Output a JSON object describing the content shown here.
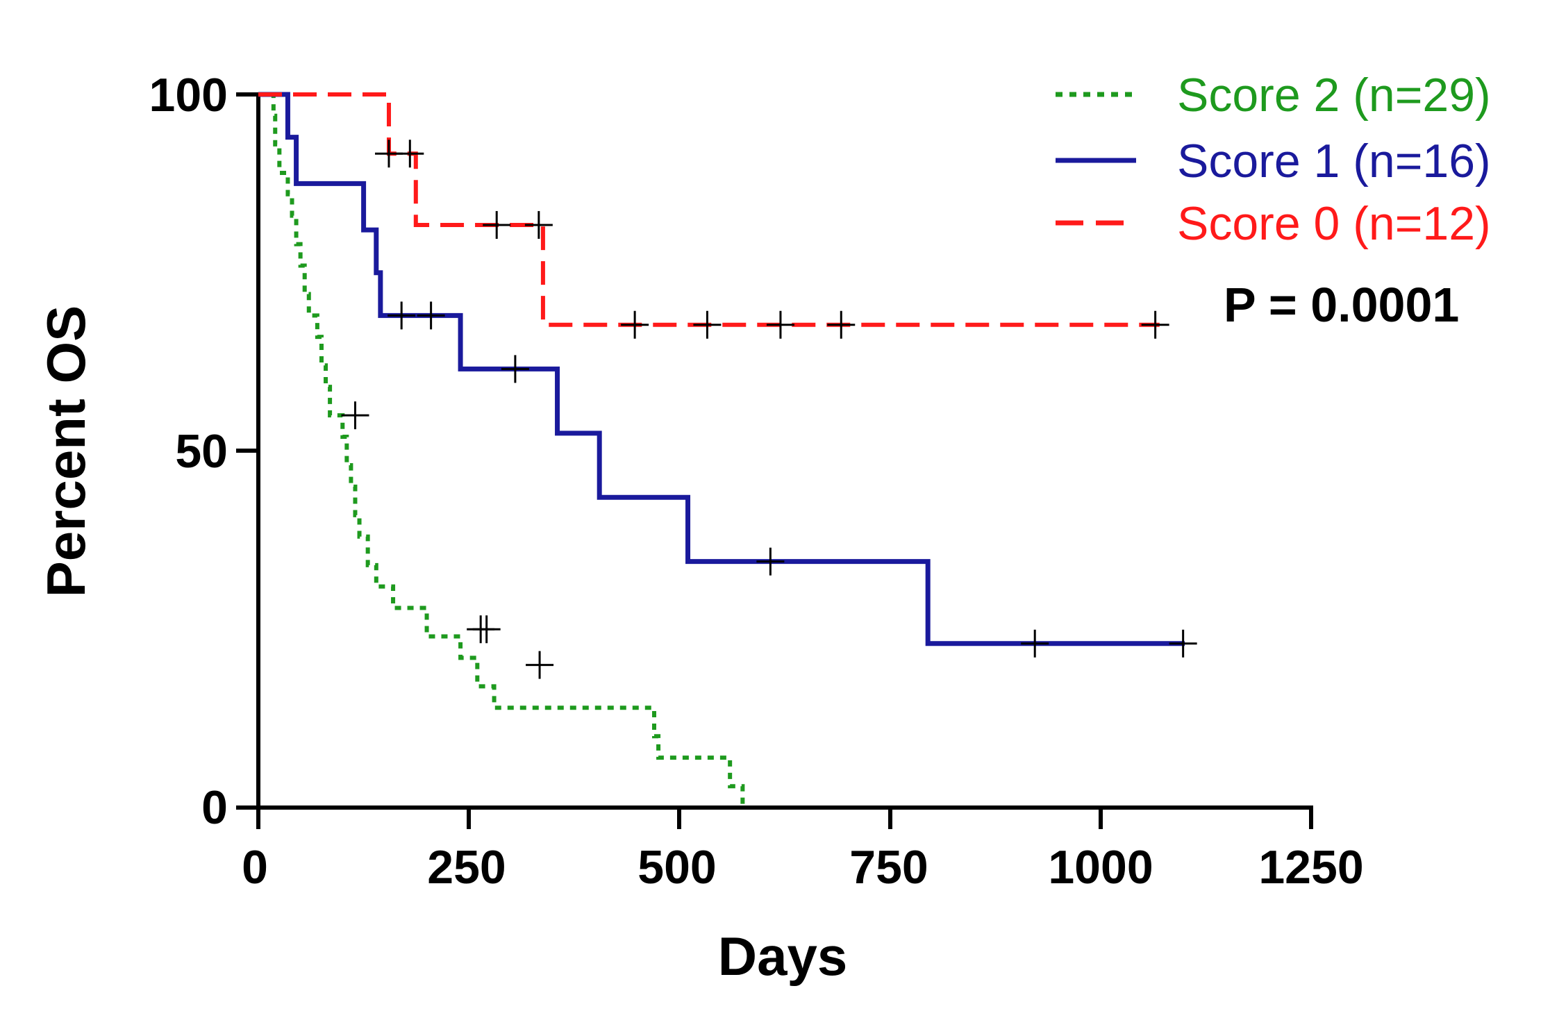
{
  "chart_data": {
    "type": "line",
    "subtype": "kaplan-meier",
    "title": "",
    "xlabel": "Days",
    "ylabel": "Percent OS",
    "xlim": [
      0,
      1250
    ],
    "ylim": [
      0,
      100
    ],
    "xticks": [
      "0",
      "250",
      "500",
      "750",
      "1000",
      "1250"
    ],
    "yticks": [
      "0",
      "50",
      "100"
    ],
    "legend_position": "top-right",
    "annotation": "P = 0.0001",
    "series": [
      {
        "name": "Score 2 (n=29)",
        "color": "#1e9a1e",
        "style": "dotted",
        "steps": [
          [
            0,
            100
          ],
          [
            15,
            100
          ],
          [
            18,
            97
          ],
          [
            20,
            93
          ],
          [
            25,
            89
          ],
          [
            35,
            86
          ],
          [
            40,
            83
          ],
          [
            45,
            79
          ],
          [
            50,
            76
          ],
          [
            55,
            72
          ],
          [
            60,
            69
          ],
          [
            70,
            66
          ],
          [
            75,
            62
          ],
          [
            80,
            59
          ],
          [
            85,
            55
          ],
          [
            100,
            52
          ],
          [
            105,
            48
          ],
          [
            110,
            45
          ],
          [
            115,
            41
          ],
          [
            120,
            38
          ],
          [
            130,
            34
          ],
          [
            140,
            31
          ],
          [
            160,
            28
          ],
          [
            200,
            24
          ],
          [
            240,
            21
          ],
          [
            260,
            17
          ],
          [
            280,
            14
          ],
          [
            470,
            10
          ],
          [
            475,
            7
          ],
          [
            560,
            3
          ],
          [
            575,
            0
          ]
        ],
        "censored": [
          [
            115,
            55
          ],
          [
            264,
            25
          ],
          [
            271,
            25
          ],
          [
            334,
            20
          ]
        ]
      },
      {
        "name": "Score 1 (n=16)",
        "color": "#1a1a9c",
        "style": "solid",
        "steps": [
          [
            0,
            100
          ],
          [
            35,
            100
          ],
          [
            35,
            94
          ],
          [
            45,
            94
          ],
          [
            45,
            87.5
          ],
          [
            125,
            87.5
          ],
          [
            125,
            81
          ],
          [
            140,
            81
          ],
          [
            140,
            75
          ],
          [
            145,
            75
          ],
          [
            145,
            69
          ],
          [
            240,
            69
          ],
          [
            240,
            61.5
          ],
          [
            355,
            61.5
          ],
          [
            355,
            52.5
          ],
          [
            405,
            52.5
          ],
          [
            405,
            43.5
          ],
          [
            510,
            43.5
          ],
          [
            510,
            34.5
          ],
          [
            795,
            34.5
          ],
          [
            795,
            23
          ],
          [
            1100,
            23
          ]
        ],
        "censored": [
          [
            170,
            69
          ],
          [
            205,
            69
          ],
          [
            305,
            61.5
          ],
          [
            608,
            34.5
          ],
          [
            922,
            23
          ],
          [
            1098,
            23
          ]
        ]
      },
      {
        "name": "Score 0 (n=12)",
        "color": "#ff1a1a",
        "style": "dashed",
        "steps": [
          [
            0,
            100
          ],
          [
            155,
            100
          ],
          [
            155,
            91.7
          ],
          [
            187,
            91.7
          ],
          [
            187,
            81.7
          ],
          [
            338,
            81.7
          ],
          [
            338,
            67.7
          ],
          [
            1070,
            67.7
          ]
        ],
        "censored": [
          [
            155,
            91.7
          ],
          [
            180,
            91.7
          ],
          [
            283,
            81.7
          ],
          [
            333,
            81.7
          ],
          [
            447,
            67.7
          ],
          [
            533,
            67.7
          ],
          [
            620,
            67.7
          ],
          [
            692,
            67.7
          ],
          [
            1065,
            67.7
          ]
        ]
      }
    ]
  }
}
